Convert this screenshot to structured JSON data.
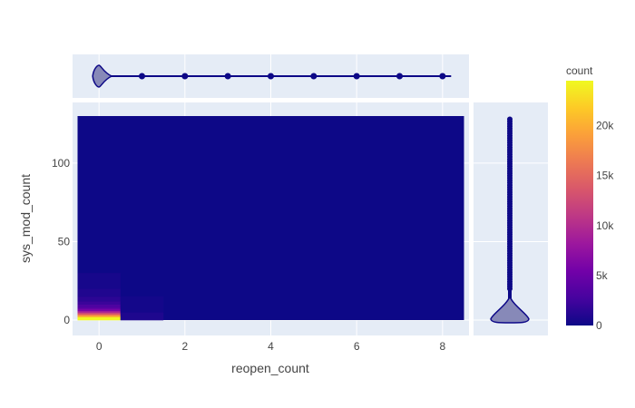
{
  "chart_data": {
    "type": "heatmap",
    "title": "",
    "xlabel": "reopen_count",
    "ylabel": "sys_mod_count",
    "x_ticks": [
      0,
      2,
      4,
      6,
      8
    ],
    "y_ticks": [
      0,
      50,
      100
    ],
    "xlim": [
      -0.5,
      8.5
    ],
    "ylim": [
      0,
      130
    ],
    "colorbar": {
      "title": "count",
      "min": 0,
      "max": 24500,
      "ticks": [
        0,
        5000,
        10000,
        15000,
        20000
      ],
      "tick_labels": [
        "0",
        "5k",
        "10k",
        "15k",
        "20k"
      ],
      "colors": [
        "#0d0887",
        "#46039f",
        "#7201a8",
        "#9c179e",
        "#bd3786",
        "#d8576b",
        "#ed7953",
        "#fb9f3a",
        "#fdca26",
        "#f0f921"
      ]
    },
    "heatmap_cells": [
      {
        "x0": -0.5,
        "x1": 0.5,
        "y0": 0,
        "y1": 2,
        "count": 24500
      },
      {
        "x0": -0.5,
        "x1": 0.5,
        "y0": 2,
        "y1": 3,
        "count": 20000
      },
      {
        "x0": -0.5,
        "x1": 0.5,
        "y0": 3,
        "y1": 4,
        "count": 16000
      },
      {
        "x0": -0.5,
        "x1": 0.5,
        "y0": 4,
        "y1": 5,
        "count": 12000
      },
      {
        "x0": -0.5,
        "x1": 0.5,
        "y0": 5,
        "y1": 6,
        "count": 8500
      },
      {
        "x0": -0.5,
        "x1": 0.5,
        "y0": 6,
        "y1": 7,
        "count": 6000
      },
      {
        "x0": -0.5,
        "x1": 0.5,
        "y0": 7,
        "y1": 8,
        "count": 4500
      },
      {
        "x0": -0.5,
        "x1": 0.5,
        "y0": 8,
        "y1": 10,
        "count": 3200
      },
      {
        "x0": -0.5,
        "x1": 0.5,
        "y0": 10,
        "y1": 12,
        "count": 2200
      },
      {
        "x0": -0.5,
        "x1": 0.5,
        "y0": 12,
        "y1": 15,
        "count": 1500
      },
      {
        "x0": -0.5,
        "x1": 0.5,
        "y0": 15,
        "y1": 20,
        "count": 900
      },
      {
        "x0": -0.5,
        "x1": 0.5,
        "y0": 20,
        "y1": 30,
        "count": 500
      },
      {
        "x0": 0.5,
        "x1": 1.5,
        "y0": 0,
        "y1": 5,
        "count": 800
      },
      {
        "x0": 0.5,
        "x1": 1.5,
        "y0": 5,
        "y1": 15,
        "count": 350
      }
    ],
    "marginal_x": {
      "type": "violin",
      "outlier_points": [
        1,
        2,
        3,
        4,
        5,
        6,
        7,
        8
      ],
      "whisker_max": 8.2
    },
    "marginal_y": {
      "type": "violin",
      "outlier_range": [
        20,
        129
      ],
      "whisker_max": 129
    }
  }
}
